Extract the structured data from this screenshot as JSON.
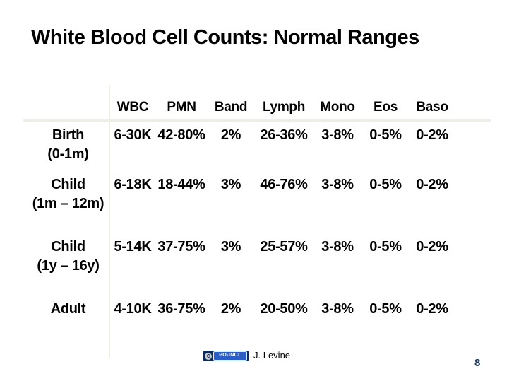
{
  "slide": {
    "title": "White Blood Cell Counts: Normal Ranges",
    "page_number": "8",
    "footer": {
      "badge_text": "PO-INCL",
      "credit": "J. Levine"
    },
    "colors": {
      "background": "#ffffff",
      "title_text": "#000000",
      "table_text": "#000000",
      "divider_line": "#efece2",
      "badge_outer": "#0c2a5a",
      "badge_inner": "#2b5fc7",
      "page_number": "#1f3864"
    }
  },
  "table": {
    "headers": [
      "WBC",
      "PMN",
      "Band",
      "Lymph",
      "Mono",
      "Eos",
      "Baso"
    ],
    "rows": [
      {
        "label": "Birth",
        "sublabel": "(0-1m)",
        "values": [
          "6-30K",
          "42-80%",
          "2%",
          "26-36%",
          "3-8%",
          "0-5%",
          "0-2%"
        ]
      },
      {
        "label": "Child",
        "sublabel": "(1m – 12m)",
        "values": [
          "6-18K",
          "18-44%",
          "3%",
          "46-76%",
          "3-8%",
          "0-5%",
          "0-2%"
        ]
      },
      {
        "label": "Child",
        "sublabel": "(1y – 16y)",
        "values": [
          "5-14K",
          "37-75%",
          "3%",
          "25-57%",
          "3-8%",
          "0-5%",
          "0-2%"
        ]
      },
      {
        "label": "Adult",
        "sublabel": "",
        "values": [
          "4-10K",
          "36-75%",
          "2%",
          "20-50%",
          "3-8%",
          "0-5%",
          "0-2%"
        ]
      }
    ]
  }
}
